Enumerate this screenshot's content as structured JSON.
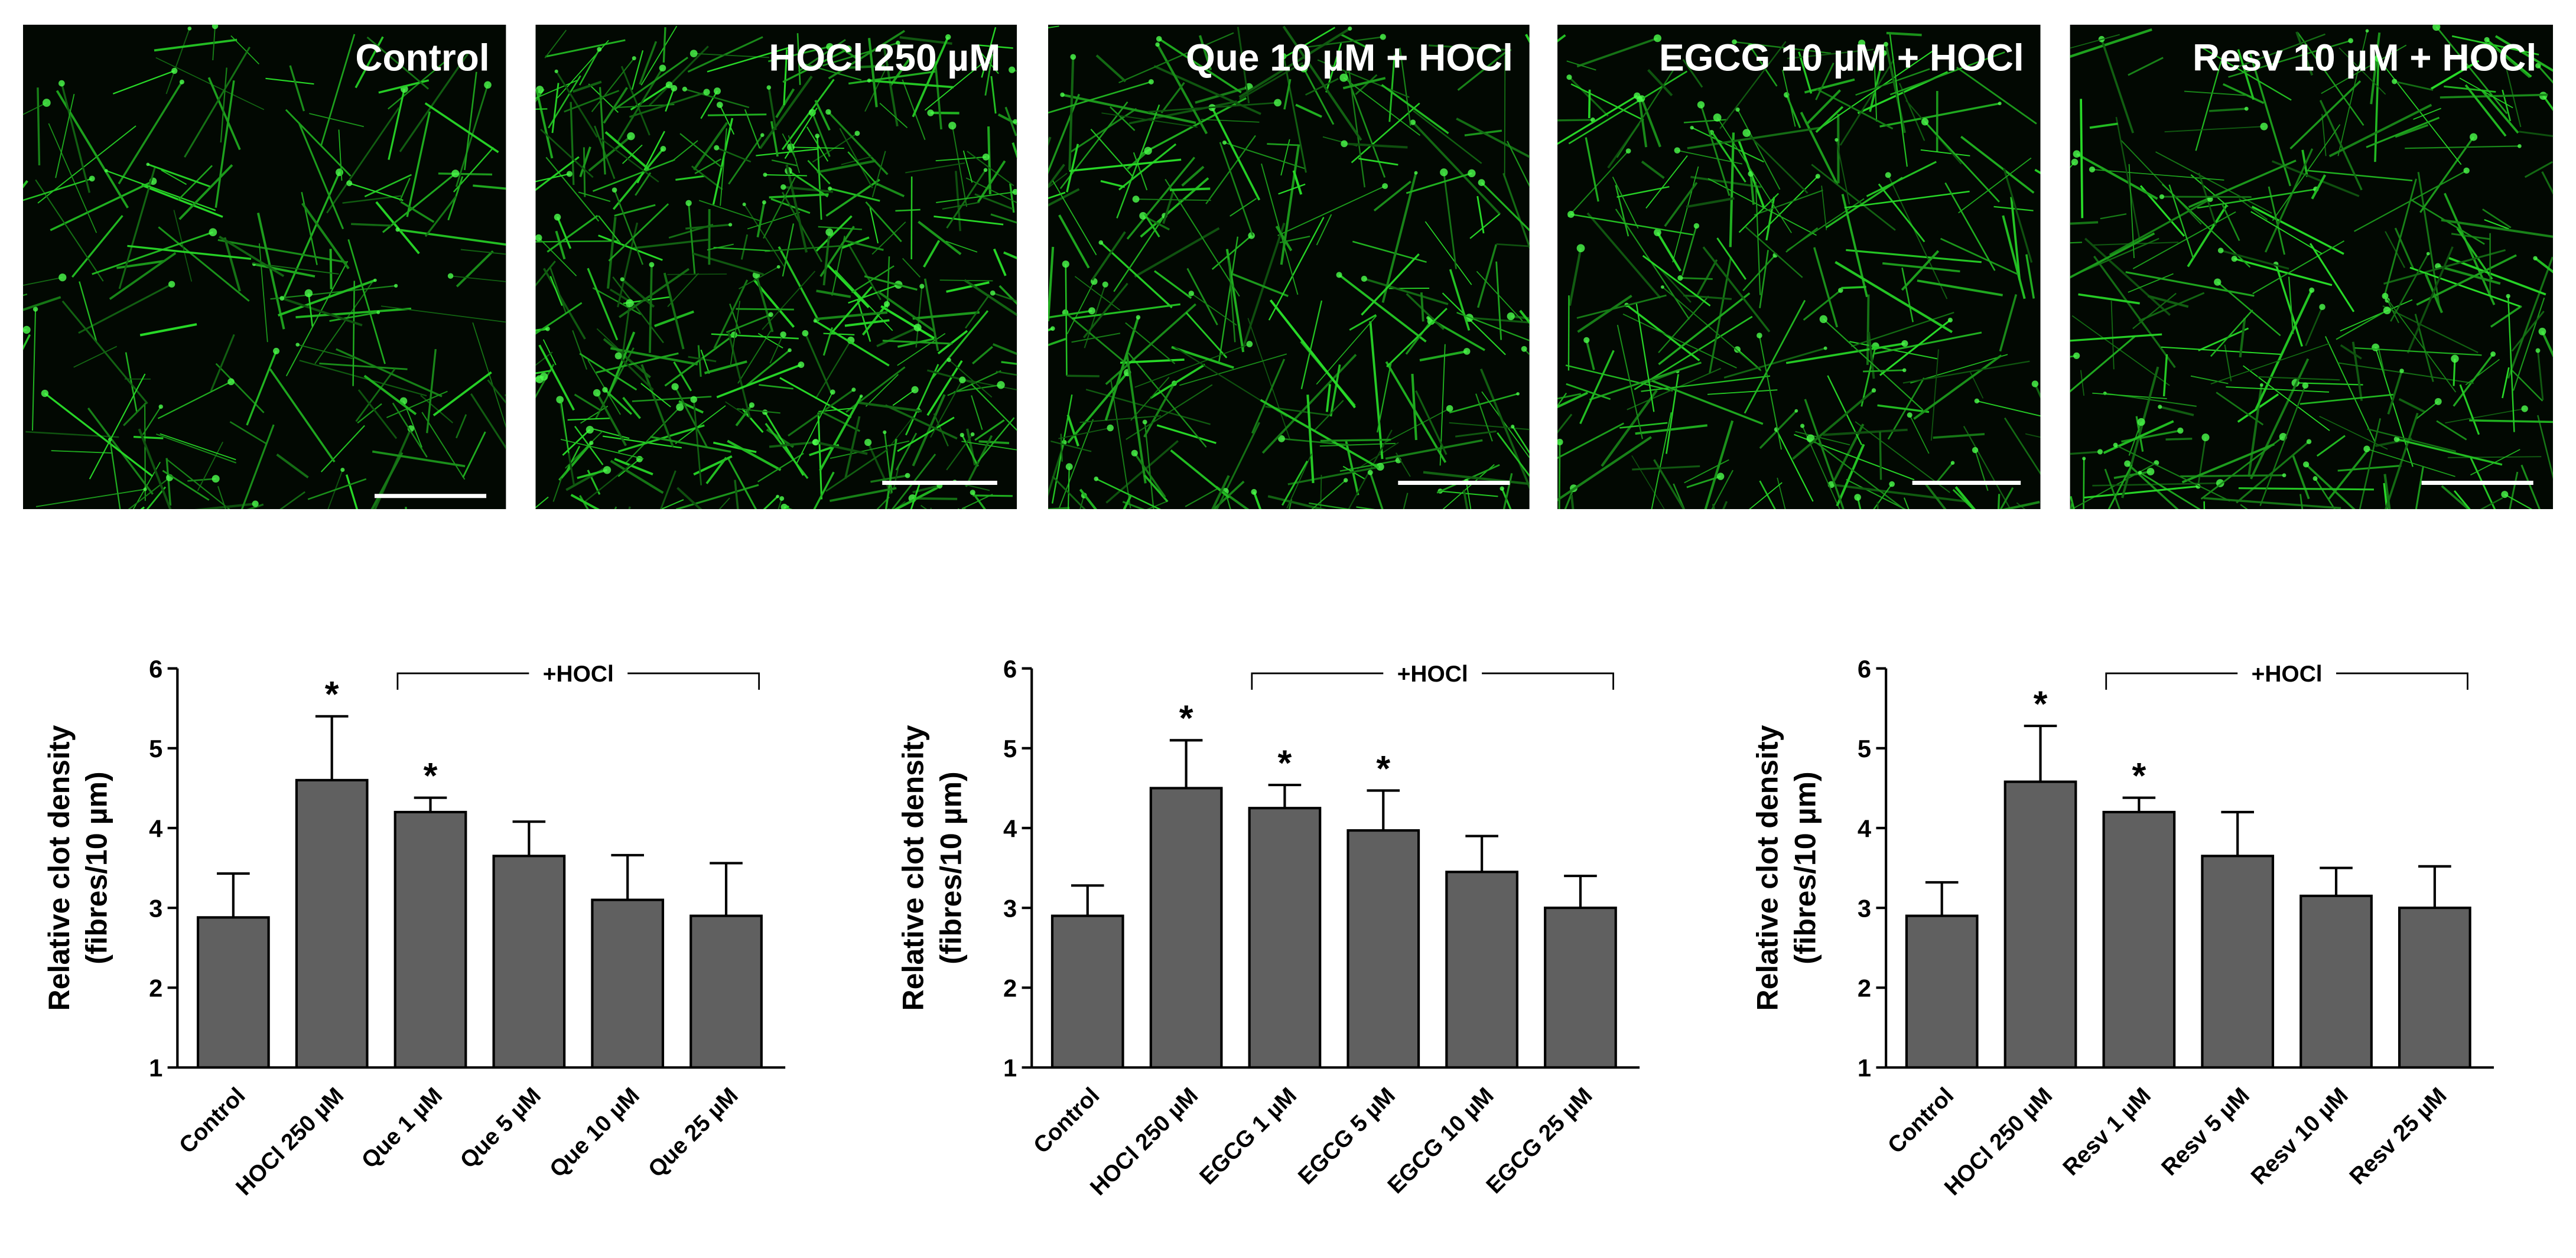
{
  "images": [
    {
      "label": "Control"
    },
    {
      "label": "HOCl 250 µM"
    },
    {
      "label": "Que 10 µM + HOCl"
    },
    {
      "label": "EGCG 10 µM + HOCl"
    },
    {
      "label": "Resv 10 µM + HOCl"
    }
  ],
  "chart_data": [
    {
      "type": "bar",
      "y_label": [
        "Relative clot density",
        "(fibres/10 µm)"
      ],
      "bracket_label": "+HOCl",
      "categories": [
        "Control",
        "HOCl 250 µM",
        "Que 1 µM",
        "Que 5 µM",
        "Que 10 µM",
        "Que 25 µM"
      ],
      "values": [
        2.88,
        4.6,
        4.2,
        3.65,
        3.1,
        2.9
      ],
      "errors": [
        0.55,
        0.8,
        0.18,
        0.43,
        0.56,
        0.66
      ],
      "significance": [
        null,
        "*",
        "*",
        null,
        null,
        null
      ],
      "color": "#606060",
      "ylim": [
        1,
        6
      ],
      "yticks": [
        1,
        2,
        3,
        4,
        5,
        6
      ]
    },
    {
      "type": "bar",
      "y_label": [
        "Relative clot density",
        "(fibres/10 µm)"
      ],
      "bracket_label": "+HOCl",
      "categories": [
        "Control",
        "HOCl 250 µM",
        "EGCG 1 µM",
        "EGCG 5 µM",
        "EGCG 10 µM",
        "EGCG 25 µM"
      ],
      "values": [
        2.9,
        4.5,
        4.25,
        3.97,
        3.45,
        3.0
      ],
      "errors": [
        0.38,
        0.6,
        0.29,
        0.5,
        0.45,
        0.4
      ],
      "significance": [
        null,
        "*",
        "*",
        "*",
        null,
        null
      ],
      "color": "#606060",
      "ylim": [
        1,
        6
      ],
      "yticks": [
        1,
        2,
        3,
        4,
        5,
        6
      ]
    },
    {
      "type": "bar",
      "y_label": [
        "Relative clot density",
        "(fibres/10 µm)"
      ],
      "bracket_label": "+HOCl",
      "categories": [
        "Control",
        "HOCl 250 µM",
        "Resv 1 µM",
        "Resv 5 µM",
        "Resv 10 µM",
        "Resv 25 µM"
      ],
      "values": [
        2.9,
        4.58,
        4.2,
        3.65,
        3.15,
        3.0
      ],
      "errors": [
        0.42,
        0.7,
        0.18,
        0.55,
        0.35,
        0.52
      ],
      "significance": [
        null,
        "*",
        "*",
        null,
        null,
        null
      ],
      "color": "#606060",
      "ylim": [
        1,
        6
      ],
      "yticks": [
        1,
        2,
        3,
        4,
        5,
        6
      ]
    }
  ]
}
